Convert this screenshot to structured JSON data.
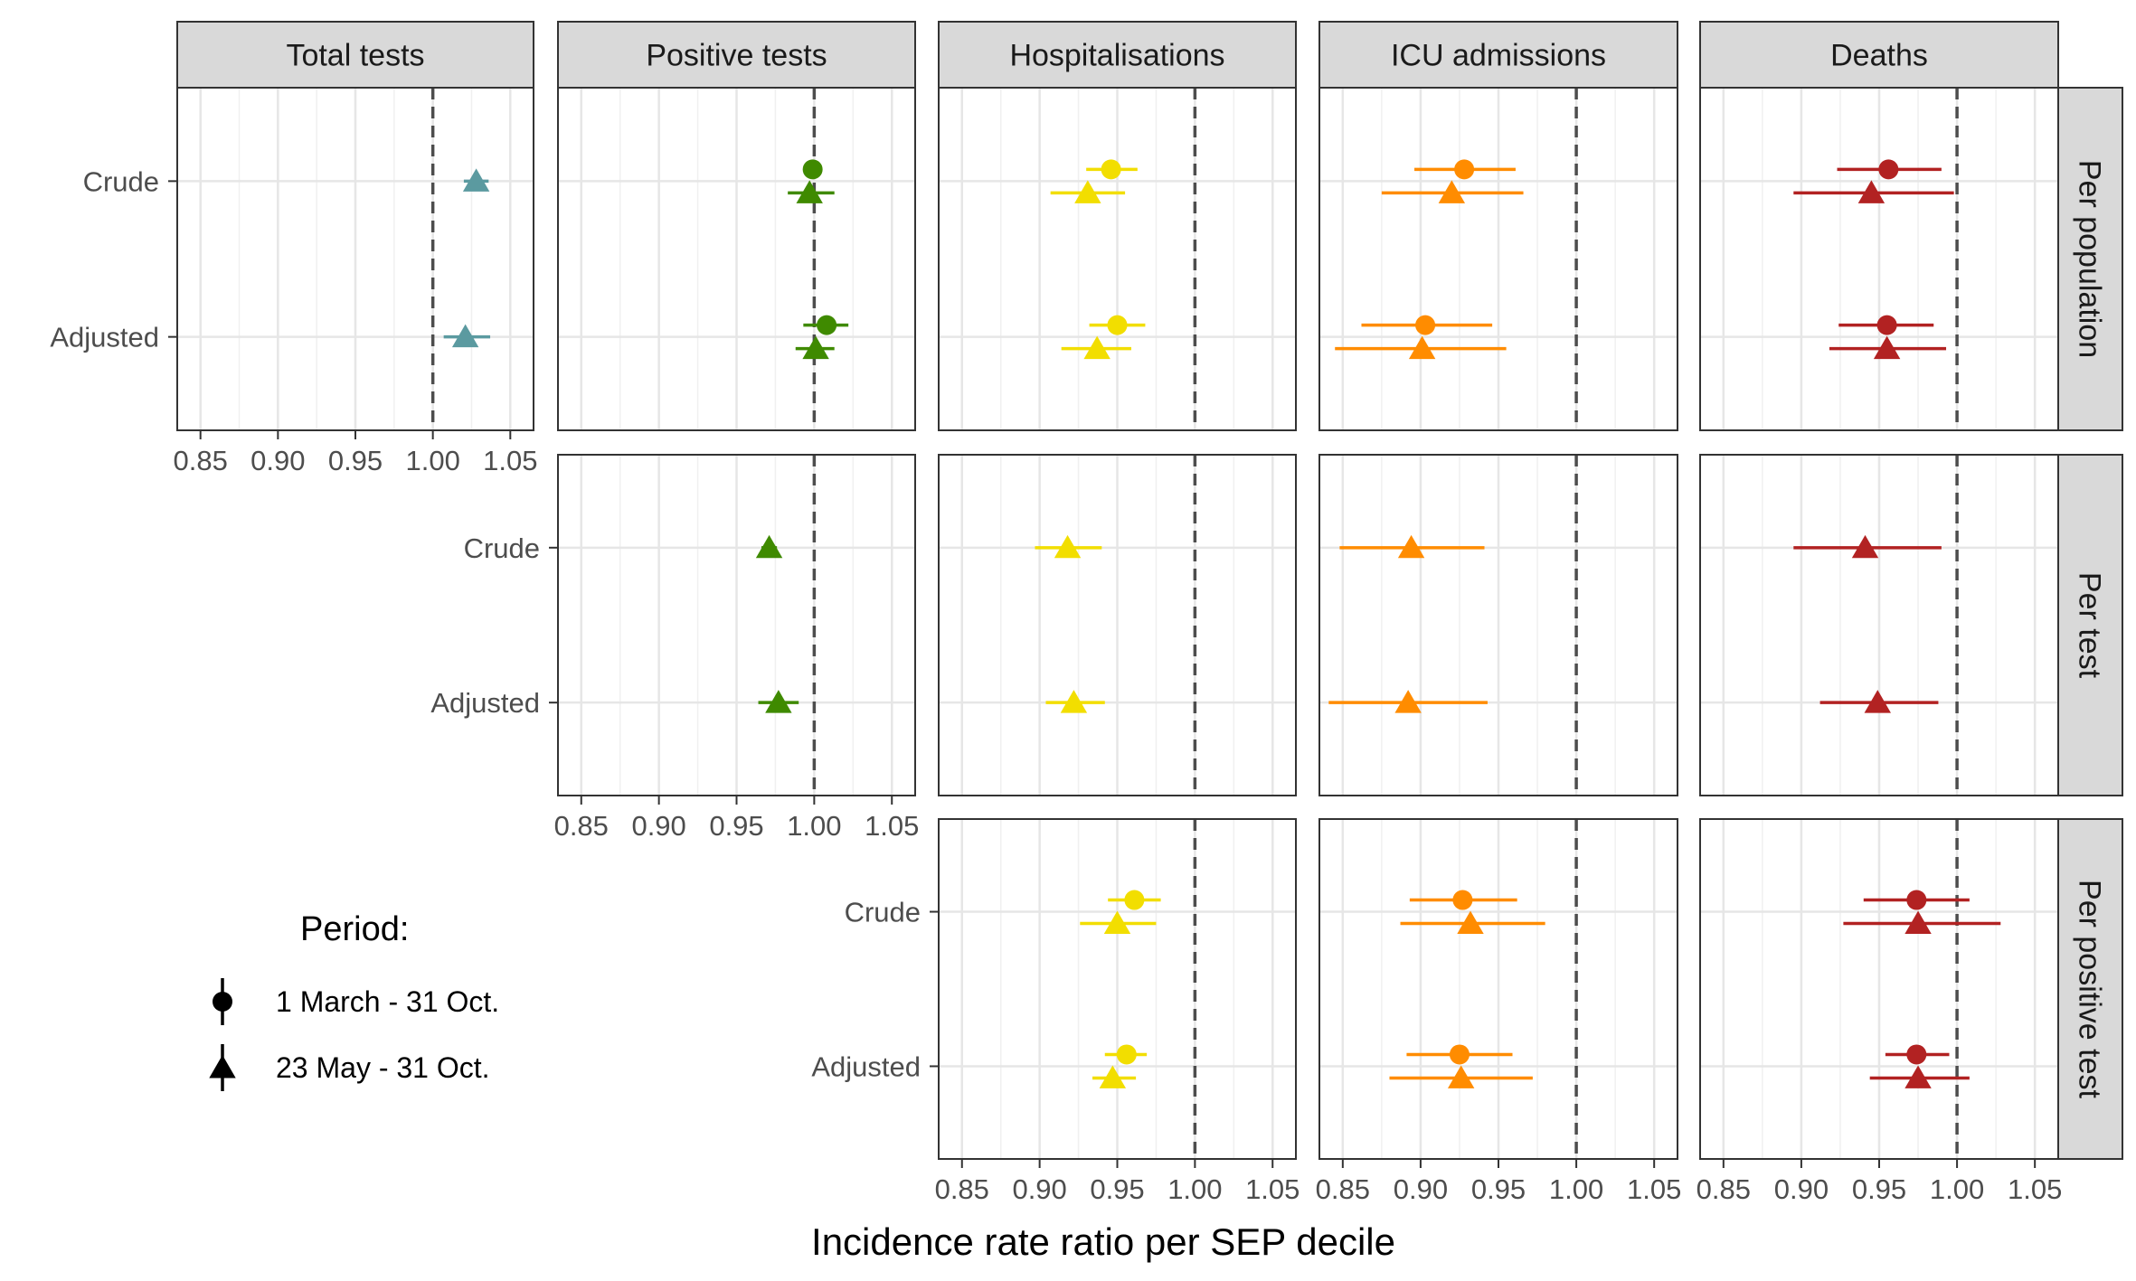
{
  "chart_data": {
    "type": "scatter",
    "subtype": "faceted forest plot (point estimate with confidence interval)",
    "xlabel": "Incidence rate ratio per SEP decile",
    "xlim": [
      0.835,
      1.065
    ],
    "x_ticks": [
      0.85,
      0.9,
      0.95,
      1.0,
      1.05
    ],
    "x_tick_labels": [
      "0.85",
      "0.90",
      "0.95",
      "1.00",
      "1.05"
    ],
    "reference_line": 1.0,
    "y_categories": [
      "Crude",
      "Adjusted"
    ],
    "grid": true,
    "facet_columns": [
      {
        "key": "total",
        "label": "Total tests",
        "color": "#5b9aa0"
      },
      {
        "key": "positive",
        "label": "Positive tests",
        "color": "#3f8a00"
      },
      {
        "key": "hosp",
        "label": "Hospitalisations",
        "color": "#f2de00"
      },
      {
        "key": "icu",
        "label": "ICU admissions",
        "color": "#ff8c00"
      },
      {
        "key": "deaths",
        "label": "Deaths",
        "color": "#b22222"
      }
    ],
    "facet_rows": [
      {
        "key": "pop",
        "label": "Per population"
      },
      {
        "key": "test",
        "label": "Per test"
      },
      {
        "key": "pos",
        "label": "Per positive test"
      }
    ],
    "legend": {
      "title": "Period:",
      "position": "bottom-left",
      "items": [
        {
          "shape": "circle",
          "label": "1 March - 31 Oct."
        },
        {
          "shape": "triangle",
          "label": "23 May - 31 Oct."
        }
      ]
    },
    "panels": [
      {
        "row": "pop",
        "col": "total",
        "points": [
          {
            "y": "Crude",
            "period": "triangle",
            "est": 1.028,
            "lo": 1.02,
            "hi": 1.036
          },
          {
            "y": "Adjusted",
            "period": "triangle",
            "est": 1.021,
            "lo": 1.007,
            "hi": 1.037
          }
        ]
      },
      {
        "row": "pop",
        "col": "positive",
        "points": [
          {
            "y": "Crude",
            "period": "circle",
            "est": 0.999,
            "lo": 0.993,
            "hi": 1.005
          },
          {
            "y": "Crude",
            "period": "triangle",
            "est": 0.997,
            "lo": 0.983,
            "hi": 1.013
          },
          {
            "y": "Adjusted",
            "period": "circle",
            "est": 1.008,
            "lo": 0.993,
            "hi": 1.022
          },
          {
            "y": "Adjusted",
            "period": "triangle",
            "est": 1.001,
            "lo": 0.988,
            "hi": 1.013
          }
        ]
      },
      {
        "row": "pop",
        "col": "hosp",
        "points": [
          {
            "y": "Crude",
            "period": "circle",
            "est": 0.946,
            "lo": 0.93,
            "hi": 0.963
          },
          {
            "y": "Crude",
            "period": "triangle",
            "est": 0.931,
            "lo": 0.907,
            "hi": 0.955
          },
          {
            "y": "Adjusted",
            "period": "circle",
            "est": 0.95,
            "lo": 0.932,
            "hi": 0.968
          },
          {
            "y": "Adjusted",
            "period": "triangle",
            "est": 0.937,
            "lo": 0.914,
            "hi": 0.959
          }
        ]
      },
      {
        "row": "pop",
        "col": "icu",
        "points": [
          {
            "y": "Crude",
            "period": "circle",
            "est": 0.928,
            "lo": 0.896,
            "hi": 0.961
          },
          {
            "y": "Crude",
            "period": "triangle",
            "est": 0.92,
            "lo": 0.875,
            "hi": 0.966
          },
          {
            "y": "Adjusted",
            "period": "circle",
            "est": 0.903,
            "lo": 0.862,
            "hi": 0.946
          },
          {
            "y": "Adjusted",
            "period": "triangle",
            "est": 0.901,
            "lo": 0.845,
            "hi": 0.955
          }
        ]
      },
      {
        "row": "pop",
        "col": "deaths",
        "points": [
          {
            "y": "Crude",
            "period": "circle",
            "est": 0.956,
            "lo": 0.923,
            "hi": 0.99
          },
          {
            "y": "Crude",
            "period": "triangle",
            "est": 0.945,
            "lo": 0.895,
            "hi": 0.998
          },
          {
            "y": "Adjusted",
            "period": "circle",
            "est": 0.955,
            "lo": 0.924,
            "hi": 0.985
          },
          {
            "y": "Adjusted",
            "period": "triangle",
            "est": 0.955,
            "lo": 0.918,
            "hi": 0.993
          }
        ]
      },
      {
        "row": "test",
        "col": "positive",
        "points": [
          {
            "y": "Crude",
            "period": "triangle",
            "est": 0.971,
            "lo": 0.966,
            "hi": 0.976
          },
          {
            "y": "Adjusted",
            "period": "triangle",
            "est": 0.977,
            "lo": 0.964,
            "hi": 0.99
          }
        ]
      },
      {
        "row": "test",
        "col": "hosp",
        "points": [
          {
            "y": "Crude",
            "period": "triangle",
            "est": 0.918,
            "lo": 0.897,
            "hi": 0.94
          },
          {
            "y": "Adjusted",
            "period": "triangle",
            "est": 0.922,
            "lo": 0.904,
            "hi": 0.942
          }
        ]
      },
      {
        "row": "test",
        "col": "icu",
        "points": [
          {
            "y": "Crude",
            "period": "triangle",
            "est": 0.894,
            "lo": 0.848,
            "hi": 0.941
          },
          {
            "y": "Adjusted",
            "period": "triangle",
            "est": 0.892,
            "lo": 0.841,
            "hi": 0.943
          }
        ]
      },
      {
        "row": "test",
        "col": "deaths",
        "points": [
          {
            "y": "Crude",
            "period": "triangle",
            "est": 0.941,
            "lo": 0.895,
            "hi": 0.99
          },
          {
            "y": "Adjusted",
            "period": "triangle",
            "est": 0.949,
            "lo": 0.912,
            "hi": 0.988
          }
        ]
      },
      {
        "row": "pos",
        "col": "hosp",
        "points": [
          {
            "y": "Crude",
            "period": "circle",
            "est": 0.961,
            "lo": 0.944,
            "hi": 0.978
          },
          {
            "y": "Crude",
            "period": "triangle",
            "est": 0.95,
            "lo": 0.926,
            "hi": 0.975
          },
          {
            "y": "Adjusted",
            "period": "circle",
            "est": 0.956,
            "lo": 0.942,
            "hi": 0.969
          },
          {
            "y": "Adjusted",
            "period": "triangle",
            "est": 0.947,
            "lo": 0.934,
            "hi": 0.962
          }
        ]
      },
      {
        "row": "pos",
        "col": "icu",
        "points": [
          {
            "y": "Crude",
            "period": "circle",
            "est": 0.927,
            "lo": 0.893,
            "hi": 0.962
          },
          {
            "y": "Crude",
            "period": "triangle",
            "est": 0.932,
            "lo": 0.887,
            "hi": 0.98
          },
          {
            "y": "Adjusted",
            "period": "circle",
            "est": 0.925,
            "lo": 0.891,
            "hi": 0.959
          },
          {
            "y": "Adjusted",
            "period": "triangle",
            "est": 0.926,
            "lo": 0.88,
            "hi": 0.972
          }
        ]
      },
      {
        "row": "pos",
        "col": "deaths",
        "points": [
          {
            "y": "Crude",
            "period": "circle",
            "est": 0.974,
            "lo": 0.94,
            "hi": 1.008
          },
          {
            "y": "Crude",
            "period": "triangle",
            "est": 0.975,
            "lo": 0.927,
            "hi": 1.028
          },
          {
            "y": "Adjusted",
            "period": "circle",
            "est": 0.974,
            "lo": 0.954,
            "hi": 0.995
          },
          {
            "y": "Adjusted",
            "period": "triangle",
            "est": 0.975,
            "lo": 0.944,
            "hi": 1.008
          }
        ]
      }
    ]
  }
}
